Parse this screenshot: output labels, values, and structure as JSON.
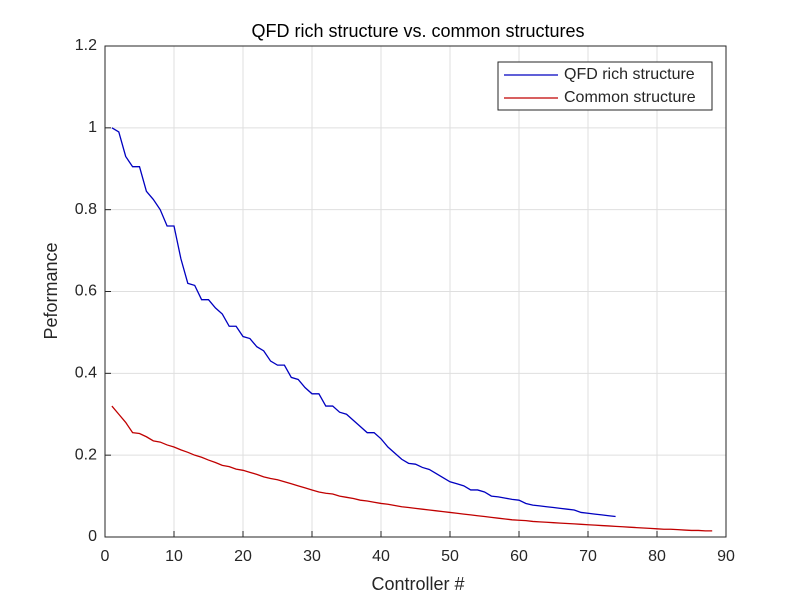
{
  "chart_data": {
    "type": "line",
    "title": "QFD rich structure vs. common structures",
    "xlabel": "Controller #",
    "ylabel": "Peformance",
    "xlim": [
      0,
      90
    ],
    "xticks": [
      0,
      10,
      20,
      30,
      40,
      50,
      60,
      70,
      80,
      90
    ],
    "ylim": [
      0,
      1.2
    ],
    "yticks": [
      0,
      0.2,
      0.4,
      0.6,
      0.8,
      1,
      1.2
    ],
    "grid": true,
    "legend": "top-right",
    "series": [
      {
        "name": "QFD rich structure",
        "color": "#0000c0",
        "x": [
          1,
          2,
          3,
          4,
          5,
          6,
          7,
          8,
          9,
          10,
          11,
          12,
          13,
          14,
          15,
          16,
          17,
          18,
          19,
          20,
          21,
          22,
          23,
          24,
          25,
          26,
          27,
          28,
          29,
          30,
          31,
          32,
          33,
          34,
          35,
          36,
          37,
          38,
          39,
          40,
          41,
          42,
          43,
          44,
          45,
          46,
          47,
          48,
          49,
          50,
          51,
          52,
          53,
          54,
          55,
          56,
          57,
          58,
          59,
          60,
          61,
          62,
          63,
          64,
          65,
          66,
          67,
          68,
          69,
          70,
          71,
          72,
          73,
          74
        ],
        "values": [
          1.0,
          0.99,
          0.93,
          0.905,
          0.905,
          0.845,
          0.825,
          0.8,
          0.76,
          0.76,
          0.68,
          0.62,
          0.615,
          0.58,
          0.58,
          0.56,
          0.545,
          0.515,
          0.515,
          0.49,
          0.485,
          0.465,
          0.455,
          0.43,
          0.42,
          0.42,
          0.39,
          0.385,
          0.365,
          0.35,
          0.35,
          0.32,
          0.32,
          0.305,
          0.3,
          0.285,
          0.27,
          0.255,
          0.255,
          0.24,
          0.22,
          0.205,
          0.19,
          0.18,
          0.178,
          0.17,
          0.165,
          0.155,
          0.145,
          0.135,
          0.13,
          0.125,
          0.115,
          0.115,
          0.11,
          0.1,
          0.098,
          0.095,
          0.092,
          0.09,
          0.082,
          0.078,
          0.076,
          0.074,
          0.072,
          0.07,
          0.068,
          0.066,
          0.06,
          0.058,
          0.056,
          0.054,
          0.052,
          0.05
        ]
      },
      {
        "name": "Common structure",
        "color": "#c00000",
        "x": [
          1,
          2,
          3,
          4,
          5,
          6,
          7,
          8,
          9,
          10,
          11,
          12,
          13,
          14,
          15,
          16,
          17,
          18,
          19,
          20,
          21,
          22,
          23,
          24,
          25,
          26,
          27,
          28,
          29,
          30,
          31,
          32,
          33,
          34,
          35,
          36,
          37,
          38,
          39,
          40,
          41,
          42,
          43,
          44,
          45,
          46,
          47,
          48,
          49,
          50,
          51,
          52,
          53,
          54,
          55,
          56,
          57,
          58,
          59,
          60,
          61,
          62,
          63,
          64,
          65,
          66,
          67,
          68,
          69,
          70,
          71,
          72,
          73,
          74,
          75,
          76,
          77,
          78,
          79,
          80,
          81,
          82,
          83,
          84,
          85,
          86,
          87,
          88
        ],
        "values": [
          0.32,
          0.3,
          0.28,
          0.255,
          0.253,
          0.245,
          0.235,
          0.232,
          0.225,
          0.22,
          0.213,
          0.207,
          0.2,
          0.195,
          0.188,
          0.182,
          0.175,
          0.172,
          0.166,
          0.163,
          0.158,
          0.153,
          0.147,
          0.143,
          0.14,
          0.135,
          0.13,
          0.125,
          0.12,
          0.115,
          0.11,
          0.107,
          0.105,
          0.1,
          0.097,
          0.094,
          0.09,
          0.088,
          0.085,
          0.082,
          0.08,
          0.077,
          0.074,
          0.072,
          0.07,
          0.068,
          0.066,
          0.064,
          0.062,
          0.06,
          0.058,
          0.056,
          0.054,
          0.052,
          0.05,
          0.048,
          0.046,
          0.044,
          0.042,
          0.041,
          0.04,
          0.038,
          0.037,
          0.036,
          0.035,
          0.034,
          0.033,
          0.032,
          0.031,
          0.03,
          0.029,
          0.028,
          0.027,
          0.026,
          0.025,
          0.024,
          0.023,
          0.022,
          0.021,
          0.02,
          0.019,
          0.019,
          0.018,
          0.017,
          0.016,
          0.016,
          0.015,
          0.015
        ]
      }
    ]
  }
}
